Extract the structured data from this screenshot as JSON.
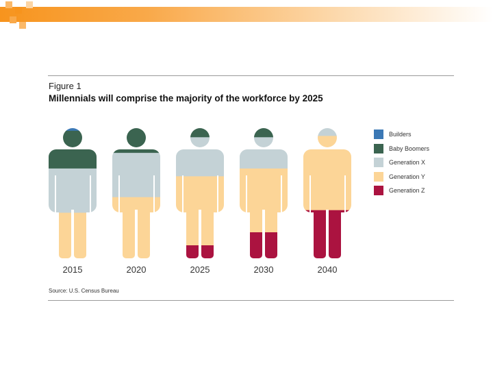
{
  "figure_label": "Figure 1",
  "title": "Millennials will comprise the majority of the workforce by 2025",
  "source": "Source: U.S. Census Bureau",
  "colors": {
    "builders": "#3b78b5",
    "boomers": "#3b6450",
    "genx": "#c4d2d6",
    "geny": "#fcd597",
    "genz": "#ab1340",
    "accent": "#f7941d"
  },
  "chart_data": {
    "type": "pictograph",
    "title": "Millennials will comprise the majority of the workforce by 2025",
    "categories": [
      "2015",
      "2020",
      "2025",
      "2030",
      "2040"
    ],
    "legend": [
      {
        "name": "Builders",
        "color": "#3b78b5"
      },
      {
        "name": "Baby Boomers",
        "color": "#3b6450"
      },
      {
        "name": "Generation X",
        "color": "#c4d2d6"
      },
      {
        "name": "Generation Y",
        "color": "#fcd597"
      },
      {
        "name": "Generation Z",
        "color": "#ab1340"
      }
    ],
    "legend_position": "right",
    "series": [
      {
        "name": "Builders",
        "values": [
          2,
          0,
          0,
          0,
          0
        ]
      },
      {
        "name": "Baby Boomers",
        "values": [
          29,
          19,
          7,
          7,
          0
        ]
      },
      {
        "name": "Generation X",
        "values": [
          34,
          34,
          30,
          24,
          6
        ]
      },
      {
        "name": "Generation Y",
        "values": [
          35,
          47,
          53,
          49,
          57
        ]
      },
      {
        "name": "Generation Z",
        "values": [
          0,
          0,
          10,
          20,
          37
        ]
      }
    ],
    "ylim": [
      0,
      100
    ]
  }
}
